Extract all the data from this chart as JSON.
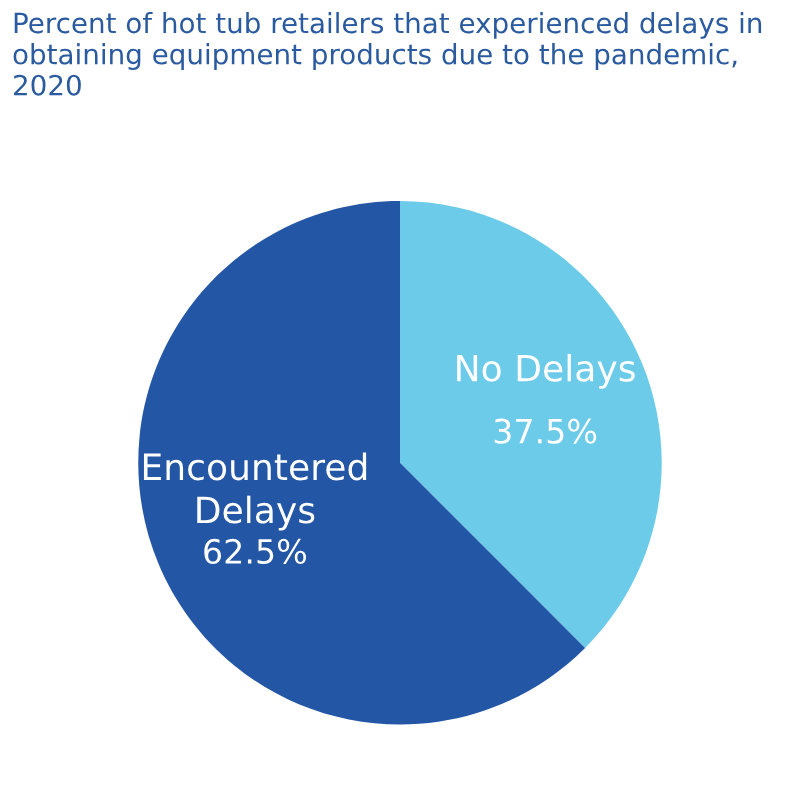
{
  "chart_data": {
    "type": "pie",
    "title": "Percent of hot tub retailers that experienced delays in obtaining equipment products due to the pandemic, 2020",
    "categories": [
      "No Delays",
      "Encountered Delays"
    ],
    "values": [
      37.5,
      62.5
    ],
    "colors": [
      "#6ccbe8",
      "#2456a6"
    ],
    "value_labels": [
      "37.5%",
      "62.5%"
    ],
    "legend": false
  }
}
